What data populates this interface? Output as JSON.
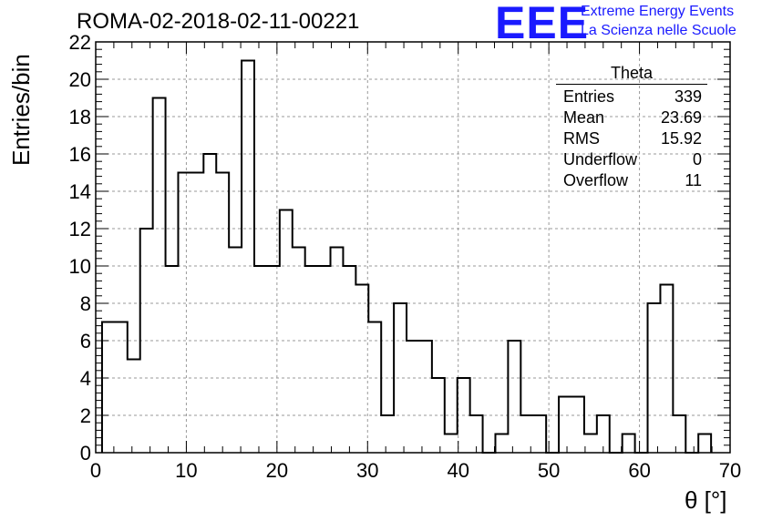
{
  "title": "ROMA-02-2018-02-11-00221",
  "logo": {
    "mark": "EEE",
    "line1": "Extreme Energy Events",
    "line2": "La Scienza nelle Scuole"
  },
  "stats": {
    "name": "Theta",
    "rows": [
      {
        "label": "Entries",
        "value": "339"
      },
      {
        "label": "Mean",
        "value": "23.69"
      },
      {
        "label": "RMS",
        "value": "15.92"
      },
      {
        "label": "Underflow",
        "value": "0"
      },
      {
        "label": "Overflow",
        "value": "11"
      }
    ]
  },
  "chart_data": {
    "type": "bar",
    "title": "ROMA-02-2018-02-11-00221",
    "xlabel": "θ [°]",
    "ylabel": "Entries/bin",
    "xlim": [
      0,
      70
    ],
    "ylim": [
      0,
      22
    ],
    "bin_width": 1.4,
    "bin_edges_start": 0.7,
    "x_ticks": [
      0,
      10,
      20,
      30,
      40,
      50,
      60,
      70
    ],
    "y_ticks": [
      0,
      2,
      4,
      6,
      8,
      10,
      12,
      14,
      16,
      18,
      20,
      22
    ],
    "grid": true,
    "values": [
      7,
      7,
      5,
      12,
      19,
      10,
      15,
      15,
      16,
      15,
      11,
      21,
      10,
      10,
      13,
      11,
      10,
      10,
      11,
      10,
      9,
      7,
      2,
      8,
      6,
      6,
      4,
      1,
      4,
      2,
      0,
      1,
      6,
      2,
      2,
      0,
      3,
      3,
      1,
      2,
      0,
      1,
      0,
      8,
      9,
      2,
      0,
      1
    ]
  }
}
